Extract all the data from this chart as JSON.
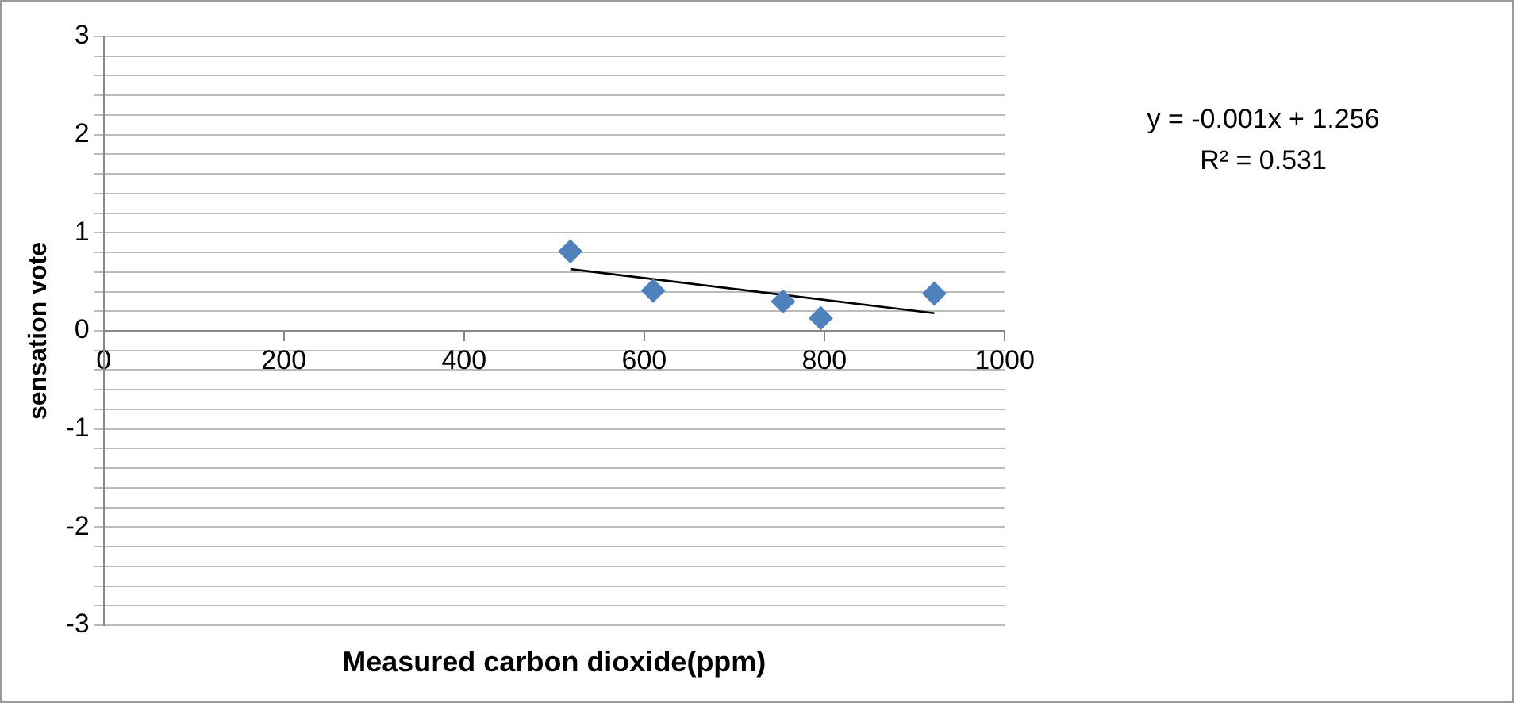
{
  "chart_data": {
    "type": "scatter",
    "xlabel": "Measured carbon dioxide(ppm)",
    "ylabel": "sensation vote",
    "annotations": [
      "y = -0.001x + 1.256",
      "R² = 0.531"
    ],
    "series": [
      {
        "color": "#4f81bd",
        "x": [
          518,
          610,
          754,
          796,
          922
        ],
        "values": [
          0.81,
          0.41,
          0.3,
          0.13,
          0.38
        ],
        "marker": "diamond"
      },
      {
        "type": "line",
        "color": "#000000",
        "x": [
          518,
          922
        ],
        "values": [
          0.63,
          0.18
        ],
        "marker": "none"
      }
    ],
    "xlim": [
      0,
      1000
    ],
    "xticks": [
      0,
      200,
      400,
      600,
      800,
      1000
    ],
    "ylim": [
      -3,
      3
    ],
    "yticks": [
      -3,
      {
        "value": -2.8,
        "label": null
      },
      {
        "value": -2.6,
        "label": null
      },
      {
        "value": -2.4,
        "label": null
      },
      {
        "value": -2.2,
        "label": null
      },
      -2,
      {
        "value": -1.8,
        "label": null
      },
      {
        "value": -1.6,
        "label": null
      },
      {
        "value": -1.4,
        "label": null
      },
      {
        "value": -1.2,
        "label": null
      },
      -1,
      {
        "value": -0.8,
        "label": null
      },
      {
        "value": -0.6,
        "label": null
      },
      {
        "value": -0.4,
        "label": null
      },
      {
        "value": -0.2,
        "label": null
      },
      0,
      {
        "value": 0.2,
        "label": null
      },
      {
        "value": 0.4,
        "label": null
      },
      {
        "value": 0.6,
        "label": null
      },
      {
        "value": 0.8,
        "label": null
      },
      1,
      {
        "value": 1.2,
        "label": null
      },
      {
        "value": 1.4,
        "label": null
      },
      {
        "value": 1.6,
        "label": null
      },
      {
        "value": 1.8,
        "label": null
      },
      2,
      {
        "value": 2.2,
        "label": null
      },
      {
        "value": 2.4,
        "label": null
      },
      {
        "value": 2.6,
        "label": null
      },
      {
        "value": 2.8,
        "label": null
      },
      3
    ],
    "grid": "y",
    "legend": false
  }
}
